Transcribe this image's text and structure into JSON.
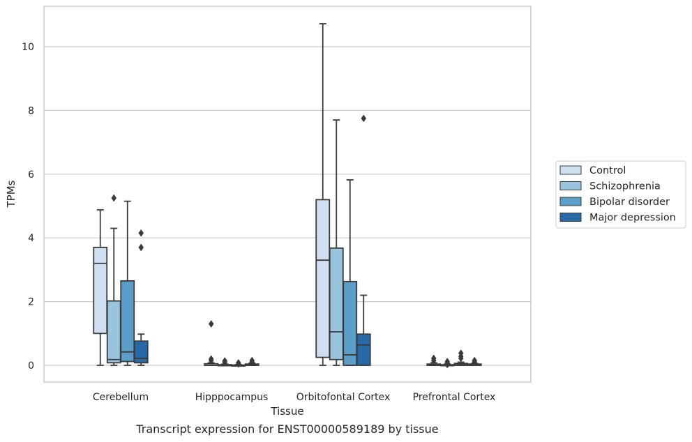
{
  "chart_data": {
    "type": "box",
    "xlabel": "Tissue",
    "ylabel": "TPMs",
    "caption": "Transcript expression for ENST00000589189 by tissue",
    "ylim": [
      -0.5,
      11.3
    ],
    "yticks": [
      0,
      2,
      4,
      6,
      8,
      10
    ],
    "grid": "horizontal",
    "legend_position": "right",
    "categories": [
      "Cerebellum",
      "Hipppocampus",
      "Orbitofontal Cortex",
      "Prefrontal Cortex"
    ],
    "series": [
      {
        "name": "Control",
        "color": "#d0e0f0",
        "boxes": [
          {
            "min": 0.0,
            "q1": 1.0,
            "median": 3.2,
            "q3": 3.7,
            "max": 4.88,
            "outliers": []
          },
          {
            "min": 0.0,
            "q1": 0.0,
            "median": 0.0,
            "q3": 0.05,
            "max": 0.08,
            "outliers": [
              0.15,
              0.2,
              1.3
            ]
          },
          {
            "min": 0.0,
            "q1": 0.25,
            "median": 3.3,
            "q3": 5.2,
            "max": 10.72,
            "outliers": []
          },
          {
            "min": 0.0,
            "q1": 0.0,
            "median": 0.0,
            "q3": 0.04,
            "max": 0.08,
            "outliers": [
              0.15,
              0.22
            ]
          }
        ]
      },
      {
        "name": "Schizophrenia",
        "color": "#99c4dd",
        "boxes": [
          {
            "min": 0.0,
            "q1": 0.08,
            "median": 0.18,
            "q3": 2.02,
            "max": 4.3,
            "outliers": [
              5.25
            ]
          },
          {
            "min": 0.0,
            "q1": 0.0,
            "median": 0.0,
            "q3": 0.02,
            "max": 0.04,
            "outliers": [
              0.1,
              0.14
            ]
          },
          {
            "min": 0.0,
            "q1": 0.18,
            "median": 1.05,
            "q3": 3.68,
            "max": 7.7,
            "outliers": []
          },
          {
            "min": 0.0,
            "q1": 0.0,
            "median": 0.0,
            "q3": 0.02,
            "max": 0.04,
            "outliers": [
              0.02,
              0.08,
              0.12
            ]
          }
        ]
      },
      {
        "name": "Bipolar disorder",
        "color": "#5a9ec9",
        "boxes": [
          {
            "min": 0.0,
            "q1": 0.12,
            "median": 0.42,
            "q3": 2.65,
            "max": 5.15,
            "outliers": []
          },
          {
            "min": 0.0,
            "q1": 0.0,
            "median": 0.0,
            "q3": 0.01,
            "max": 0.02,
            "outliers": [
              0.04,
              0.08
            ]
          },
          {
            "min": 0.0,
            "q1": 0.0,
            "median": 0.33,
            "q3": 2.63,
            "max": 5.82,
            "outliers": []
          },
          {
            "min": 0.0,
            "q1": 0.0,
            "median": 0.02,
            "q3": 0.06,
            "max": 0.1,
            "outliers": [
              0.22,
              0.28,
              0.38
            ]
          }
        ]
      },
      {
        "name": "Major depression",
        "color": "#2869a8",
        "boxes": [
          {
            "min": 0.0,
            "q1": 0.08,
            "median": 0.22,
            "q3": 0.76,
            "max": 0.98,
            "outliers": [
              3.7,
              4.15
            ]
          },
          {
            "min": 0.0,
            "q1": 0.0,
            "median": 0.0,
            "q3": 0.04,
            "max": 0.07,
            "outliers": [
              0.1,
              0.15
            ]
          },
          {
            "min": 0.0,
            "q1": 0.0,
            "median": 0.64,
            "q3": 0.98,
            "max": 2.2,
            "outliers": [
              7.75
            ]
          },
          {
            "min": 0.0,
            "q1": 0.0,
            "median": 0.0,
            "q3": 0.04,
            "max": 0.06,
            "outliers": [
              0.1,
              0.15
            ]
          }
        ]
      }
    ]
  }
}
